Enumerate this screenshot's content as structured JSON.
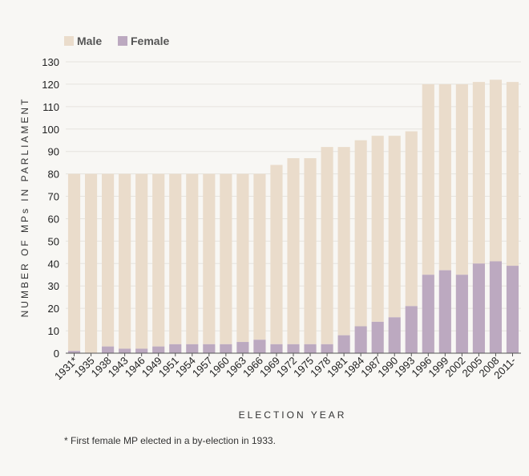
{
  "chart_data": {
    "type": "bar",
    "stacked": true,
    "title": "",
    "xlabel": "ELECTION YEAR",
    "ylabel": "NUMBER OF MPs IN PARLIAMENT",
    "ylim": [
      0,
      130
    ],
    "yticks": [
      0,
      10,
      20,
      30,
      40,
      50,
      60,
      70,
      80,
      90,
      100,
      110,
      120,
      130
    ],
    "grid": true,
    "legend_position": "top-left",
    "categories": [
      "1931*",
      "1935",
      "1938",
      "1943",
      "1946",
      "1949",
      "1951",
      "1954",
      "1957",
      "1960",
      "1963",
      "1966",
      "1969",
      "1972",
      "1975",
      "1978",
      "1981",
      "1984",
      "1987",
      "1990",
      "1993",
      "1996",
      "1999",
      "2002",
      "2005",
      "2008",
      "2011-"
    ],
    "series": [
      {
        "name": "Female",
        "color": "#bca9c0",
        "values": [
          1,
          0,
          3,
          2,
          2,
          3,
          4,
          4,
          4,
          4,
          5,
          6,
          4,
          4,
          4,
          4,
          8,
          12,
          14,
          16,
          21,
          35,
          37,
          35,
          40,
          41,
          39
        ]
      },
      {
        "name": "Male",
        "color": "#eadccb",
        "values": [
          79,
          80,
          77,
          78,
          78,
          77,
          76,
          76,
          76,
          76,
          75,
          74,
          80,
          83,
          83,
          88,
          84,
          83,
          83,
          81,
          78,
          85,
          83,
          85,
          81,
          81,
          82
        ]
      }
    ],
    "legend_order": [
      "Male",
      "Female"
    ],
    "footnote": "* First female MP elected in a by-election in 1933."
  }
}
